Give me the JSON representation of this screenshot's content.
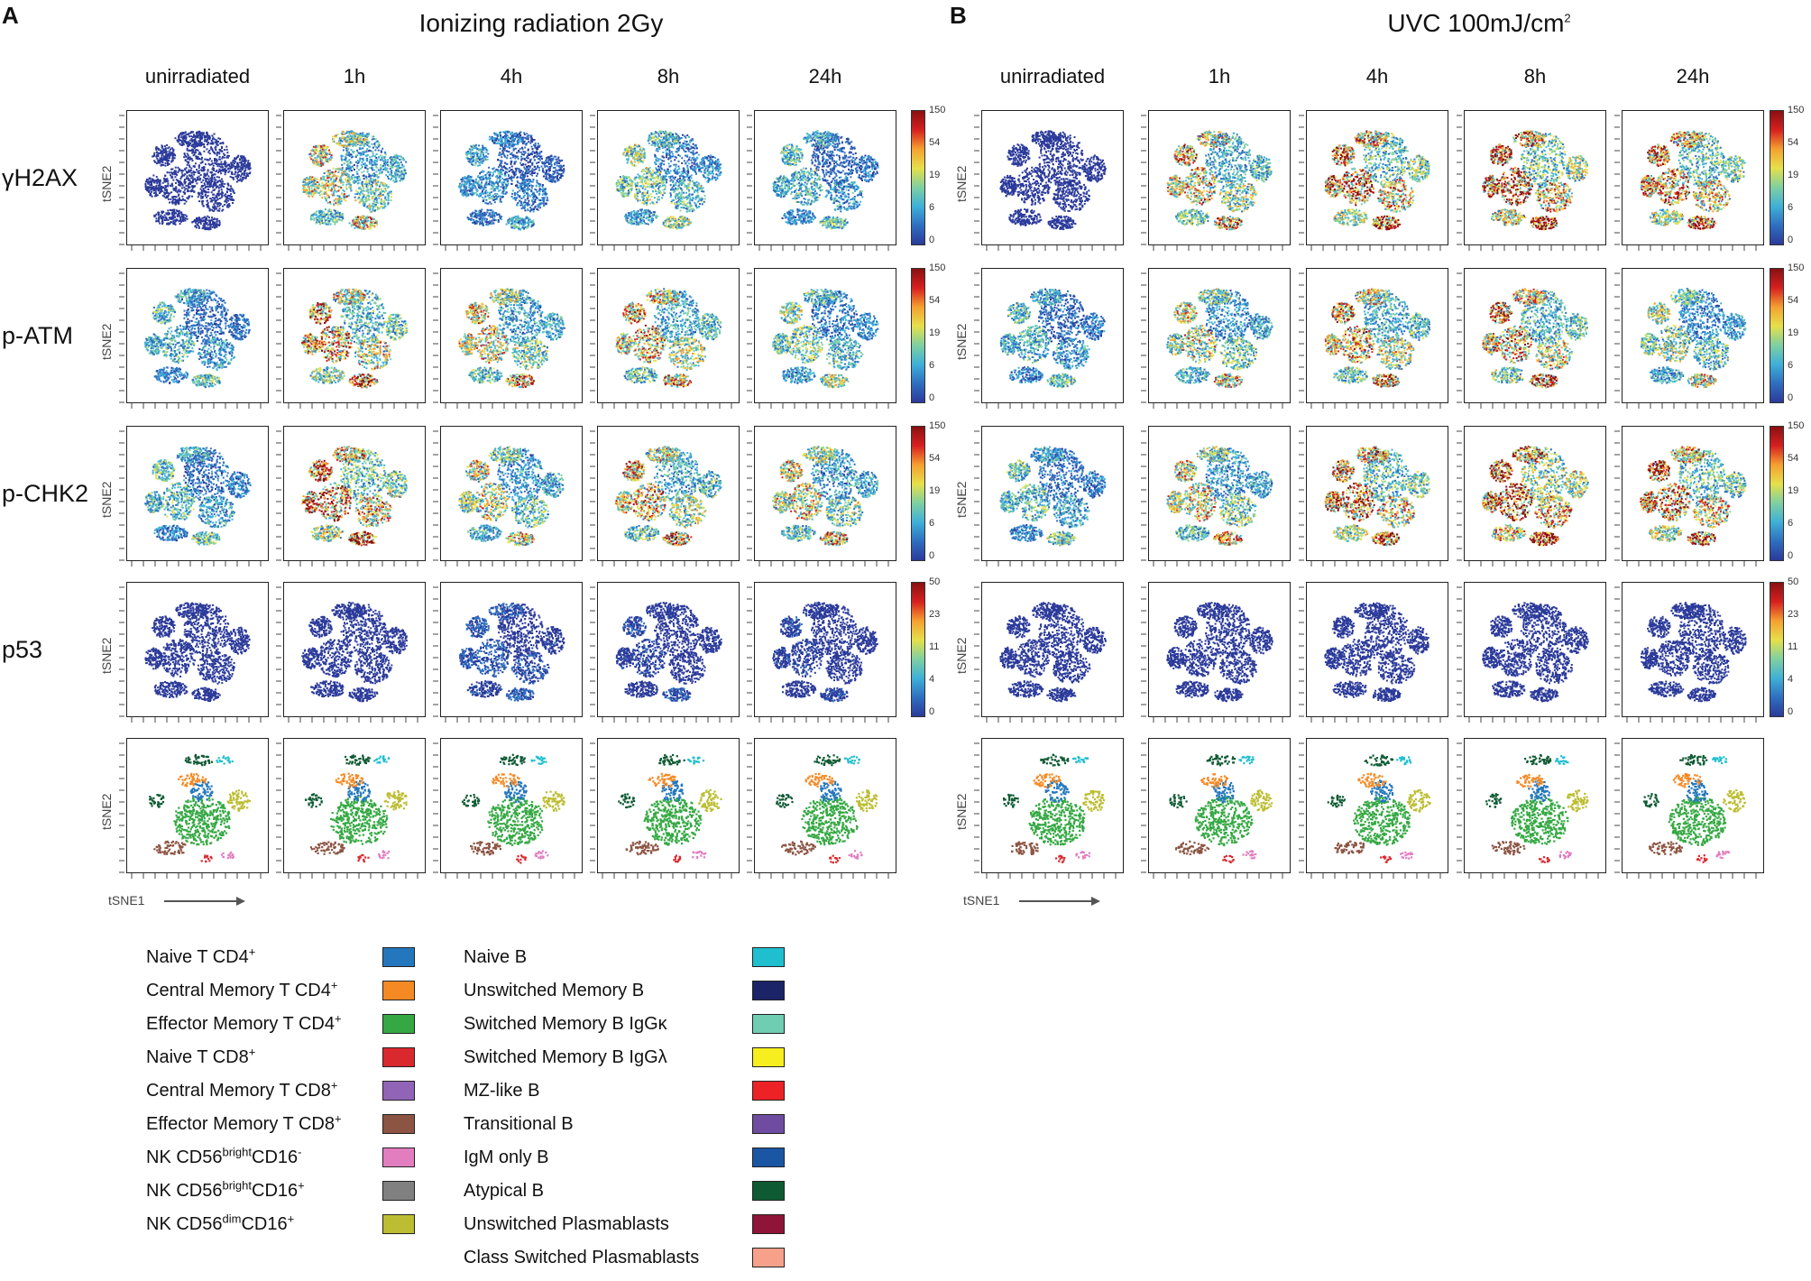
{
  "panels": [
    {
      "letter": "A",
      "title": "Ionizing radiation 2Gy",
      "title_main": "Ionizing radiation 2Gy",
      "title_sup": ""
    },
    {
      "letter": "B",
      "title": "UVC 100mJ/cm2",
      "title_main": "UVC 100mJ/cm",
      "title_sup": "2"
    }
  ],
  "columns": [
    "unirradiated",
    "1h",
    "4h",
    "8h",
    "24h"
  ],
  "rows": [
    {
      "label": "γH2AX",
      "kind": "heat",
      "scale": [
        "150",
        "54",
        "19",
        "6",
        "0"
      ],
      "intensity": [
        [
          0.05,
          0.45,
          0.22,
          0.35,
          0.28
        ],
        [
          0.05,
          0.5,
          0.6,
          0.65,
          0.58
        ]
      ]
    },
    {
      "label": "p-ATM",
      "kind": "heat",
      "scale": [
        "150",
        "54",
        "19",
        "6",
        "0"
      ],
      "intensity": [
        [
          0.28,
          0.55,
          0.45,
          0.5,
          0.35
        ],
        [
          0.28,
          0.42,
          0.52,
          0.55,
          0.38
        ]
      ]
    },
    {
      "label": "p-CHK2",
      "kind": "heat",
      "scale": [
        "150",
        "54",
        "19",
        "6",
        "0"
      ],
      "intensity": [
        [
          0.3,
          0.62,
          0.42,
          0.5,
          0.45
        ],
        [
          0.3,
          0.45,
          0.6,
          0.7,
          0.6
        ]
      ]
    },
    {
      "label": "p53",
      "kind": "heat",
      "scale": [
        "50",
        "23",
        "11",
        "4",
        "0"
      ],
      "intensity": [
        [
          0.03,
          0.05,
          0.12,
          0.08,
          0.08
        ],
        [
          0.03,
          0.05,
          0.05,
          0.05,
          0.05
        ]
      ]
    },
    {
      "label": "",
      "kind": "clusters",
      "scale": [],
      "intensity": [
        [
          0,
          0,
          0,
          0,
          0
        ],
        [
          0,
          0,
          0,
          0,
          0
        ]
      ]
    }
  ],
  "axis": {
    "y_title": "tSNE2",
    "x_title": "tSNE1"
  },
  "colormap": [
    "#2b3a9a",
    "#2f6fc0",
    "#3fb0d8",
    "#7fd0a0",
    "#e6e04a",
    "#f5a030",
    "#d62020",
    "#8a1010"
  ],
  "legend_left": [
    {
      "main": "Naive T CD4",
      "sup1": "+",
      "mid": "",
      "sup2": "",
      "tail": "",
      "color": "#2477bd"
    },
    {
      "main": "Central Memory T CD4",
      "sup1": "+",
      "mid": "",
      "sup2": "",
      "tail": "",
      "color": "#f58a25"
    },
    {
      "main": "Effector Memory T CD4",
      "sup1": "+",
      "mid": "",
      "sup2": "",
      "tail": "",
      "color": "#35a843"
    },
    {
      "main": "Naive T CD8",
      "sup1": "+",
      "mid": "",
      "sup2": "",
      "tail": "",
      "color": "#d9282e"
    },
    {
      "main": "Central Memory T CD8",
      "sup1": "+",
      "mid": "",
      "sup2": "",
      "tail": "",
      "color": "#9264b8"
    },
    {
      "main": "Effector Memory T CD8",
      "sup1": "+",
      "mid": "",
      "sup2": "",
      "tail": "",
      "color": "#8c5443"
    },
    {
      "main": "NK CD56",
      "sup1": "bright",
      "mid": "CD16",
      "sup2": "-",
      "tail": "",
      "color": "#e27dc0"
    },
    {
      "main": "NK CD56",
      "sup1": "bright",
      "mid": "CD16",
      "sup2": "+",
      "tail": "",
      "color": "#808080"
    },
    {
      "main": "NK CD56",
      "sup1": "dim",
      "mid": "CD16",
      "sup2": "+",
      "tail": "",
      "color": "#bcbd32"
    }
  ],
  "legend_right": [
    {
      "main": "Naive B",
      "color": "#1fbfcf"
    },
    {
      "main": "Unswitched Memory B",
      "color": "#1b2466"
    },
    {
      "main": "Switched Memory B IgGκ",
      "color": "#6fcdb2"
    },
    {
      "main": "Switched Memory B IgGλ",
      "color": "#f7ee1f"
    },
    {
      "main": "MZ-like B",
      "color": "#ec2226"
    },
    {
      "main": "Transitional B",
      "color": "#6f4c9f"
    },
    {
      "main": "IgM only B",
      "color": "#1a56a3"
    },
    {
      "main": "Atypical B",
      "color": "#0e5a33"
    },
    {
      "main": "Unswitched Plasmablasts",
      "color": "#8e1438"
    },
    {
      "main": "Class Switched Plasmablasts",
      "color": "#f7a18a"
    }
  ]
}
